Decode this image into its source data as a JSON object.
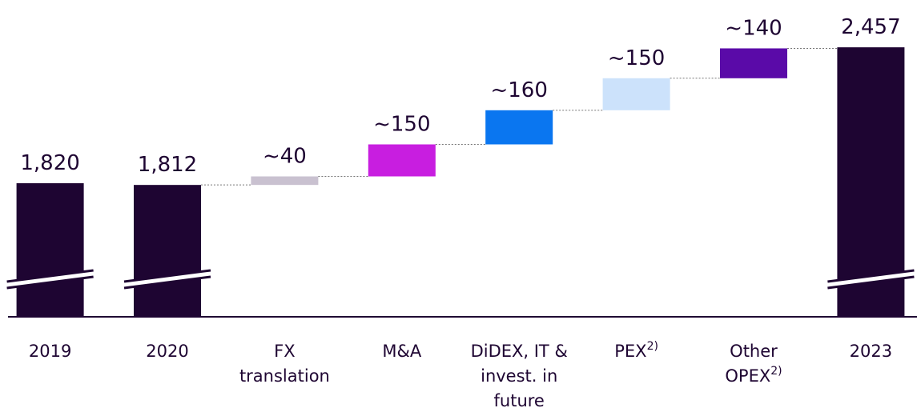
{
  "chart_data": {
    "type": "waterfall",
    "categories": [
      [
        "2019"
      ],
      [
        "2020"
      ],
      [
        "FX",
        "translation"
      ],
      [
        "M&A"
      ],
      [
        "DiDEX, IT &",
        "invest. in",
        "future"
      ],
      [
        "PEX"
      ],
      [
        "Other",
        "OPEX"
      ],
      [
        "2023"
      ]
    ],
    "category_notes": [
      null,
      null,
      null,
      null,
      null,
      "2)",
      "2)",
      null
    ],
    "values": [
      1820,
      1812,
      40,
      150,
      160,
      150,
      140,
      2457
    ],
    "value_labels": [
      "1,820",
      "1,812",
      "~40",
      "~150",
      "~160",
      "~150",
      "~140",
      "2,457"
    ],
    "colors": [
      "#1e0532",
      "#1e0532",
      "#c9c1d0",
      "#c81ee0",
      "#0a76f0",
      "#cce2fb",
      "#5a0aa8",
      "#1e0532"
    ],
    "total_bars": [
      "2019",
      "2020",
      "2023"
    ],
    "axis_break": true,
    "ylim": [
      1194,
      2480
    ]
  }
}
